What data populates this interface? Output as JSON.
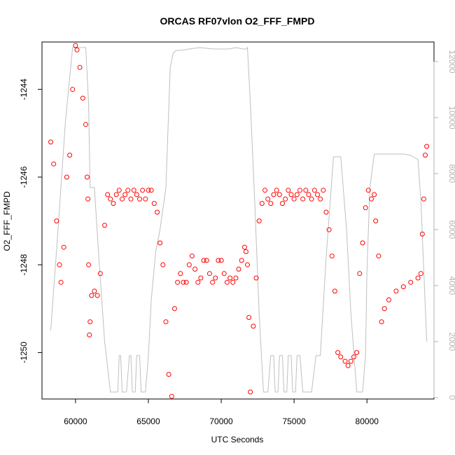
{
  "chart_data": {
    "type": "scatter",
    "title": "ORCAS RF07vlon O2_FFF_FMPD",
    "xlabel": "UTC Seconds",
    "ylabel": "O2_FFF_FMPD",
    "xlim": [
      57700,
      84600
    ],
    "ylim": [
      -1251.06,
      -1242.92
    ],
    "y2lim": [
      -50,
      12700
    ],
    "x_ticks": [
      60000,
      65000,
      70000,
      75000,
      80000
    ],
    "y_ticks": [
      -1250,
      -1248,
      -1246,
      -1244
    ],
    "y2_ticks": [
      0,
      2000,
      4000,
      6000,
      8000,
      10000,
      12000
    ],
    "grid": false,
    "series": [
      {
        "style": "points",
        "color": "#ff0000",
        "x": [
          58300,
          58500,
          58700,
          58900,
          59000,
          59200,
          59400,
          59600,
          59800,
          60000,
          60100,
          60300,
          60500,
          60700,
          60800,
          60850,
          60900,
          60950,
          61000,
          61100,
          61300,
          61500,
          61700,
          62000,
          62200,
          62400,
          62600,
          62800,
          63000,
          63200,
          63400,
          63600,
          63800,
          64000,
          64200,
          64400,
          64600,
          64800,
          65000,
          65200,
          65400,
          65600,
          65800,
          66000,
          66200,
          66400,
          66600,
          66800,
          67000,
          67200,
          67400,
          67600,
          67800,
          68000,
          68200,
          68400,
          68600,
          68800,
          69000,
          69200,
          69400,
          69600,
          69800,
          70000,
          70200,
          70400,
          70600,
          70800,
          71000,
          71200,
          71400,
          71600,
          71700,
          71800,
          71900,
          72000,
          72200,
          72400,
          72600,
          72800,
          73000,
          73200,
          73400,
          73600,
          73800,
          74000,
          74200,
          74400,
          74600,
          74800,
          75000,
          75200,
          75400,
          75600,
          75800,
          76000,
          76200,
          76400,
          76600,
          76800,
          77000,
          77200,
          77400,
          77600,
          77800,
          78000,
          78200,
          78500,
          78700,
          78900,
          79100,
          79300,
          79500,
          79700,
          79900,
          80100,
          80300,
          80500,
          80600,
          80800,
          81000,
          81200,
          81500,
          82000,
          82500,
          83000,
          83500,
          83700,
          83800,
          83900,
          84000,
          84100
        ],
        "y": [
          -1245.2,
          -1245.7,
          -1247.0,
          -1248.0,
          -1248.4,
          -1247.6,
          -1246.0,
          -1245.5,
          -1244.0,
          -1243.0,
          -1243.1,
          -1243.5,
          -1244.2,
          -1244.8,
          -1246.0,
          -1246.5,
          -1248.0,
          -1249.6,
          -1249.3,
          -1248.7,
          -1248.6,
          -1248.7,
          -1248.2,
          -1247.1,
          -1246.4,
          -1246.5,
          -1246.6,
          -1246.4,
          -1246.3,
          -1246.5,
          -1246.4,
          -1246.3,
          -1246.5,
          -1246.3,
          -1246.4,
          -1246.5,
          -1246.3,
          -1246.5,
          -1246.3,
          -1246.3,
          -1246.6,
          -1246.8,
          -1247.5,
          -1248.0,
          -1249.3,
          -1250.5,
          -1251.0,
          -1249.0,
          -1248.4,
          -1248.2,
          -1248.4,
          -1248.4,
          -1248.0,
          -1247.8,
          -1248.1,
          -1248.4,
          -1248.3,
          -1247.9,
          -1247.9,
          -1248.2,
          -1248.4,
          -1248.3,
          -1247.9,
          -1247.9,
          -1248.2,
          -1248.4,
          -1248.3,
          -1248.4,
          -1248.3,
          -1248.1,
          -1247.9,
          -1247.6,
          -1247.7,
          -1248.0,
          -1249.2,
          -1250.9,
          -1249.4,
          -1248.3,
          -1247.0,
          -1246.6,
          -1246.3,
          -1246.5,
          -1246.6,
          -1246.4,
          -1246.3,
          -1246.4,
          -1246.6,
          -1246.5,
          -1246.3,
          -1246.4,
          -1246.5,
          -1246.4,
          -1246.3,
          -1246.5,
          -1246.3,
          -1246.4,
          -1246.5,
          -1246.3,
          -1246.4,
          -1246.5,
          -1246.3,
          -1246.8,
          -1247.2,
          -1247.8,
          -1248.6,
          -1250.0,
          -1250.1,
          -1250.2,
          -1250.3,
          -1250.2,
          -1250.1,
          -1250.0,
          -1248.2,
          -1247.5,
          -1246.7,
          -1246.3,
          -1246.5,
          -1246.4,
          -1247.0,
          -1247.8,
          -1249.3,
          -1249.0,
          -1248.8,
          -1248.6,
          -1248.5,
          -1248.4,
          -1248.3,
          -1248.2,
          -1247.3,
          -1246.5,
          -1245.5,
          -1245.3
        ]
      },
      {
        "style": "line",
        "color": "#bfbfbf",
        "axis": "right",
        "x": [
          58300,
          58800,
          59300,
          59800,
          60200,
          60500,
          60700,
          60900,
          61000,
          61200,
          61300,
          61600,
          62000,
          62400,
          62600,
          62900,
          63000,
          63100,
          63200,
          63300,
          63500,
          63700,
          63800,
          63900,
          64000,
          64100,
          64200,
          64400,
          64500,
          64600,
          64700,
          64800,
          65000,
          65200,
          65500,
          65800,
          66200,
          66500,
          66700,
          66900,
          67200,
          67800,
          68500,
          69500,
          70500,
          71000,
          71500,
          71700,
          71800,
          72000,
          72300,
          72600,
          72900,
          73000,
          73100,
          73200,
          73400,
          73600,
          73700,
          73800,
          73900,
          74000,
          74200,
          74300,
          74400,
          74500,
          74600,
          74800,
          74900,
          75000,
          75100,
          75200,
          75400,
          75600,
          75800,
          76200,
          76500,
          76800,
          77200,
          77700,
          78000,
          78200,
          78600,
          78900,
          79300,
          79700,
          79900,
          80000,
          80200,
          80500,
          81000,
          81500,
          82000,
          82500,
          83000,
          83500,
          83700,
          84100
        ],
        "y": [
          2400,
          6000,
          9800,
          12500,
          12500,
          12500,
          12500,
          10500,
          7500,
          7500,
          7500,
          5000,
          2000,
          200,
          200,
          200,
          1500,
          1500,
          200,
          200,
          200,
          1500,
          1500,
          200,
          200,
          200,
          1500,
          1500,
          200,
          200,
          200,
          200,
          1500,
          3500,
          5200,
          6000,
          7500,
          11800,
          12300,
          12400,
          12400,
          12450,
          12500,
          12450,
          12450,
          12500,
          12450,
          12450,
          12500,
          10500,
          7000,
          3000,
          200,
          200,
          200,
          200,
          1500,
          1500,
          200,
          200,
          200,
          1500,
          1500,
          200,
          200,
          200,
          1500,
          1500,
          200,
          200,
          200,
          1500,
          1500,
          200,
          200,
          200,
          1500,
          1500,
          5000,
          8600,
          8600,
          8600,
          6000,
          3000,
          200,
          200,
          1500,
          4500,
          7500,
          8700,
          8700,
          8700,
          8700,
          8700,
          8650,
          8500,
          7000,
          2000
        ]
      }
    ]
  }
}
